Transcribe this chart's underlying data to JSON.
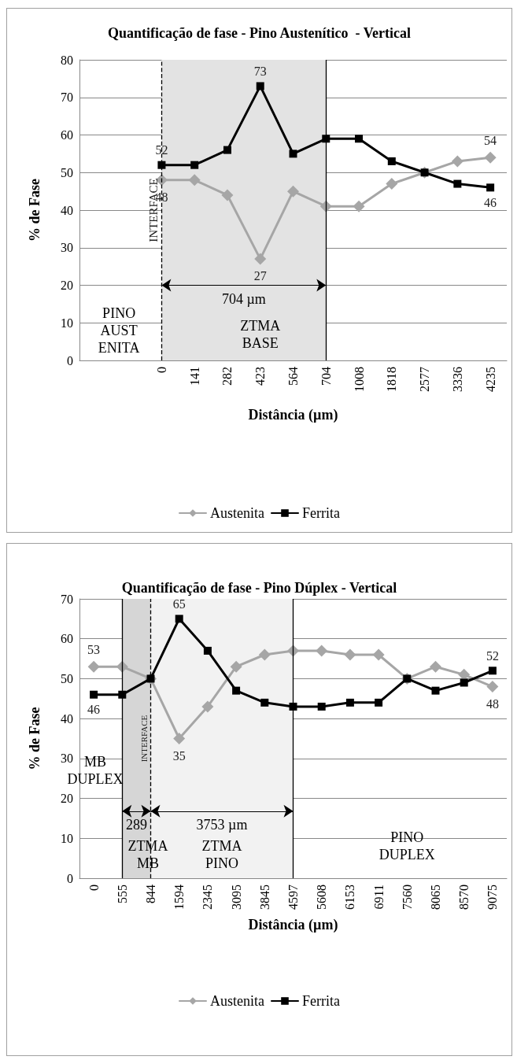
{
  "chart_data": [
    {
      "type": "line",
      "title": "Quantificação de fase - Pino Austenítico  - Vertical",
      "xlabel": "Distância (µm)",
      "ylabel": "% de Fase",
      "categories": [
        null,
        null,
        "0",
        "141",
        "282",
        "423",
        "564",
        "704",
        "1008",
        "1818",
        "2577",
        "3336",
        "4235"
      ],
      "series": [
        {
          "name": "Austenita",
          "color": "#a6a6a6",
          "marker": "diamond",
          "values": [
            null,
            null,
            48,
            48,
            44,
            27,
            45,
            41,
            41,
            47,
            50,
            53,
            54
          ],
          "value_labels": [
            null,
            null,
            "48",
            null,
            null,
            "27",
            null,
            null,
            null,
            null,
            null,
            null,
            "54"
          ]
        },
        {
          "name": "Ferrita",
          "color": "#000000",
          "marker": "square",
          "values": [
            null,
            null,
            52,
            52,
            56,
            73,
            55,
            59,
            59,
            53,
            50,
            47,
            46
          ],
          "value_labels": [
            null,
            null,
            "52",
            null,
            null,
            "73",
            null,
            null,
            null,
            null,
            null,
            null,
            "46"
          ]
        }
      ],
      "ylim": [
        0,
        80
      ],
      "yticks": [
        0,
        10,
        20,
        30,
        40,
        50,
        60,
        70,
        80
      ],
      "grid": "y",
      "legend": "bottom",
      "bands": [
        {
          "axis": "x",
          "from": "0",
          "to": "704",
          "label": "704 µm",
          "color": "#e3e3e3"
        }
      ],
      "ref_lines": [
        {
          "axis": "x",
          "value": "0",
          "label": "INTERFACE",
          "line_style": "dashed",
          "color": "#000000"
        },
        {
          "axis": "x",
          "value": "704",
          "color": "#000000"
        }
      ],
      "annotations": [
        "PINO AUST ENITA",
        "ZTMA BASE"
      ]
    },
    {
      "type": "line",
      "title": "Quantificação de fase - Pino Dúplex - Vertical",
      "xlabel": "Distância (µm)",
      "ylabel": "% de Fase",
      "categories": [
        "0",
        "555",
        "844",
        "1594",
        "2345",
        "3095",
        "3845",
        "4597",
        "5608",
        "6153",
        "6911",
        "7560",
        "8065",
        "8570",
        "9075"
      ],
      "series": [
        {
          "name": "Austenita",
          "color": "#a6a6a6",
          "marker": "diamond",
          "values": [
            53,
            53,
            50,
            35,
            43,
            53,
            56,
            57,
            57,
            56,
            56,
            50,
            53,
            51,
            48
          ],
          "value_labels": [
            "53",
            null,
            null,
            "35",
            null,
            null,
            null,
            null,
            null,
            null,
            null,
            null,
            null,
            null,
            "48"
          ]
        },
        {
          "name": "Ferrita",
          "color": "#000000",
          "marker": "square",
          "values": [
            46,
            46,
            50,
            65,
            57,
            47,
            44,
            43,
            43,
            44,
            44,
            50,
            47,
            49,
            52
          ],
          "value_labels": [
            "46",
            null,
            null,
            "65",
            null,
            null,
            null,
            null,
            null,
            null,
            null,
            null,
            null,
            null,
            "52"
          ]
        }
      ],
      "ylim": [
        0,
        70
      ],
      "yticks": [
        0,
        10,
        20,
        30,
        40,
        50,
        60,
        70
      ],
      "grid": "y",
      "legend": "bottom",
      "bands": [
        {
          "axis": "x",
          "from": "555",
          "to": "844",
          "label": "289",
          "color": "#d6d6d6"
        },
        {
          "axis": "x",
          "from": "844",
          "to": "4597",
          "label": "3753 µm",
          "color": "#f2f2f2"
        }
      ],
      "ref_lines": [
        {
          "axis": "x",
          "value": "555",
          "color": "#000000"
        },
        {
          "axis": "x",
          "value": "844",
          "label": "INTERFACE",
          "line_style": "dashed",
          "color": "#000000"
        },
        {
          "axis": "x",
          "value": "4597",
          "color": "#000000"
        }
      ],
      "annotations": [
        "MB DUPLEX",
        "ZTMA MB",
        "ZTMA PINO",
        "PINO DUPLEX"
      ]
    }
  ]
}
